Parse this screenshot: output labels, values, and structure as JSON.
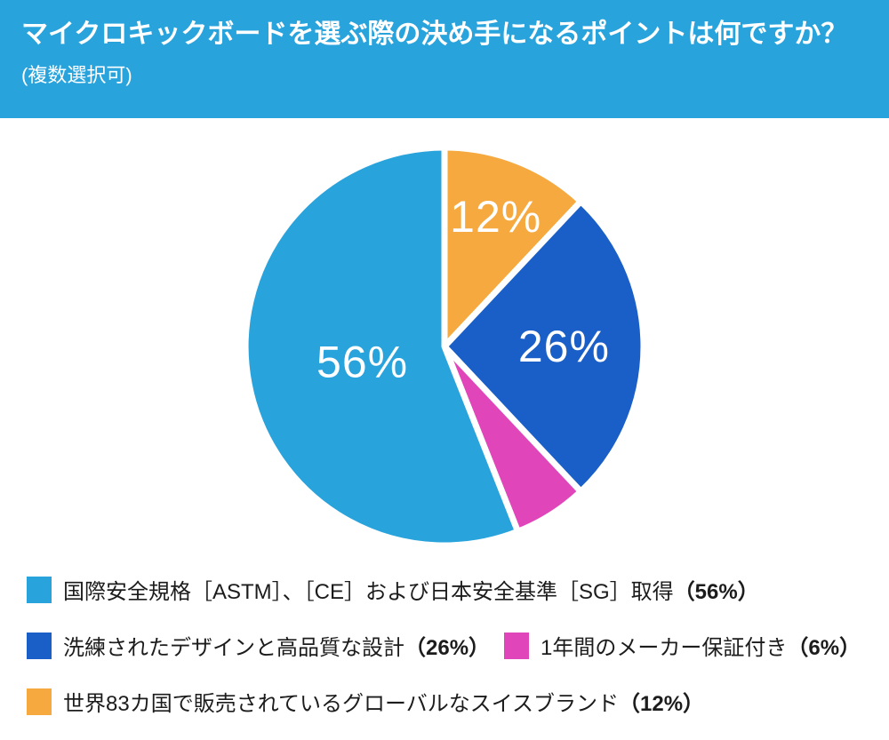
{
  "header": {
    "title": "マイクロキックボードを選ぶ際の決め手になるポイントは何ですか？",
    "subtitle": "(複数選択可)",
    "bg_color": "#29A3DC",
    "text_color": "#FFFFFF"
  },
  "chart_data": {
    "type": "pie",
    "title": "マイクロキックボードを選ぶ際の決め手になるポイントは何ですか？（複数選択可）",
    "direction": "clockwise",
    "start_angle_deg": 0,
    "label_color": "#FFFFFF",
    "separator_color": "#FFFFFF",
    "slices": [
      {
        "id": "swiss-brand",
        "category": "世界83カ国で販売されているグローバルなスイスブランド",
        "value": 12,
        "color": "#F6A93E",
        "label": "12%",
        "label_r": 0.7
      },
      {
        "id": "design-quality",
        "category": "洗練されたデザインと高品質な設計",
        "value": 26,
        "color": "#1A5FC7",
        "label": "26%",
        "label_r": 0.6
      },
      {
        "id": "warranty",
        "category": "1年間のメーカー保証付き",
        "value": 6,
        "color": "#E046BA",
        "label": null,
        "label_r": null
      },
      {
        "id": "safety-standards",
        "category": "国際安全規格［ASTM］、［CE］および日本安全基準［SG］取得",
        "value": 56,
        "color": "#29A3DC",
        "label": "56%",
        "label_r": 0.42
      }
    ]
  },
  "legend": {
    "rows": [
      {
        "items": [
          {
            "text": "国際安全規格［ASTM］、［CE］および日本安全基準［SG］取得",
            "pct": "（56%）",
            "color": "#29A3DC"
          }
        ]
      },
      {
        "items": [
          {
            "text": "洗練されたデザインと高品質な設計",
            "pct": "（26%）",
            "color": "#1A5FC7"
          },
          {
            "text": "1年間のメーカー保証付き",
            "pct": "（6%）",
            "color": "#E046BA"
          }
        ]
      },
      {
        "items": [
          {
            "text": "世界83カ国で販売されているグローバルなスイスブランド",
            "pct": "（12%）",
            "color": "#F6A93E"
          }
        ]
      }
    ]
  }
}
